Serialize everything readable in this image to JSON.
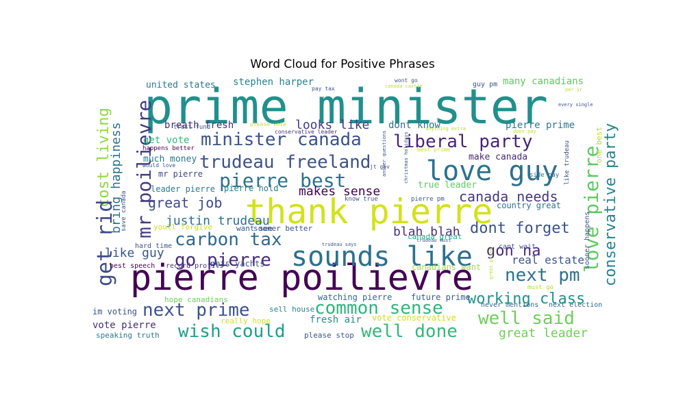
{
  "chart_data": {
    "type": "wordcloud",
    "title": "Word Cloud for Positive Phrases",
    "words": [
      {
        "text": "prime minister",
        "color": "#21908d"
      },
      {
        "text": "pierre poilievre",
        "color": "#440154"
      },
      {
        "text": "thank pierre",
        "color": "#d2e21b"
      },
      {
        "text": "sounds like",
        "color": "#2c718e"
      },
      {
        "text": "love guy",
        "color": "#2c718e"
      },
      {
        "text": "minister canada",
        "color": "#3b528b"
      },
      {
        "text": "liberal party",
        "color": "#482475"
      },
      {
        "text": "trudeau freeland",
        "color": "#3b528b"
      },
      {
        "text": "pierre best",
        "color": "#2c728e"
      },
      {
        "text": "mr poilievre",
        "color": "#443a83"
      },
      {
        "text": "cost living",
        "color": "#8fd744"
      },
      {
        "text": "get rid",
        "color": "#3e4989"
      },
      {
        "text": "love pierre",
        "color": "#5ec962"
      },
      {
        "text": "conservative party",
        "color": "#26828e"
      },
      {
        "text": "carbon tax",
        "color": "#31688e"
      },
      {
        "text": "go pierre",
        "color": "#472c7a"
      },
      {
        "text": "common sense",
        "color": "#2fb47c"
      },
      {
        "text": "next prime",
        "color": "#3b528b"
      },
      {
        "text": "wish could",
        "color": "#1f9e89"
      },
      {
        "text": "well done",
        "color": "#35b779"
      },
      {
        "text": "well said",
        "color": "#6ece58"
      },
      {
        "text": "next pm",
        "color": "#2c718e"
      },
      {
        "text": "working class",
        "color": "#21918c"
      },
      {
        "text": "dont forget",
        "color": "#3b528b"
      },
      {
        "text": "gon na",
        "color": "#482878"
      },
      {
        "text": "canada needs",
        "color": "#453781"
      },
      {
        "text": "great job",
        "color": "#3e4989"
      },
      {
        "text": "makes sense",
        "color": "#440154"
      },
      {
        "text": "looks like",
        "color": "#443a83"
      },
      {
        "text": "justin trudeau",
        "color": "#2d708e"
      },
      {
        "text": "like guy",
        "color": "#39568c"
      },
      {
        "text": "blah blah",
        "color": "#46307e"
      },
      {
        "text": "bring happiness",
        "color": "#2d708e"
      },
      {
        "text": "real estate",
        "color": "#3b528b"
      },
      {
        "text": "great leader",
        "color": "#6ece58"
      },
      {
        "text": "breath fresh",
        "color": "#482878"
      },
      {
        "text": "stephen harper",
        "color": "#26828e"
      },
      {
        "text": "united states",
        "color": "#2a788e"
      },
      {
        "text": "many canadians",
        "color": "#5ec962"
      },
      {
        "text": "dont know",
        "color": "#2c718e"
      },
      {
        "text": "pierre prime",
        "color": "#2a788e"
      },
      {
        "text": "get vote",
        "color": "#35b779"
      },
      {
        "text": "much money",
        "color": "#2a788e"
      },
      {
        "text": "make canada",
        "color": "#482878"
      },
      {
        "text": "true leader",
        "color": "#5ec962"
      },
      {
        "text": "mr pierre",
        "color": "#3e4989"
      },
      {
        "text": "leader pierre",
        "color": "#2a788e"
      },
      {
        "text": "pierre hold",
        "color": "#2a788e"
      },
      {
        "text": "fresh air",
        "color": "#21918c"
      },
      {
        "text": "vote pierre",
        "color": "#472d7b"
      },
      {
        "text": "im voting",
        "color": "#3b528b"
      },
      {
        "text": "nots yachts",
        "color": "#3b528b"
      },
      {
        "text": "watching pierre",
        "color": "#31688e"
      },
      {
        "text": "future prime",
        "color": "#355f8d"
      },
      {
        "text": "country great",
        "color": "#2c718e"
      },
      {
        "text": "canadians want",
        "color": "#a0da39"
      },
      {
        "text": "sooner better",
        "color": "#3b528b"
      },
      {
        "text": "want see",
        "color": "#3b528b"
      },
      {
        "text": "canada great",
        "color": "#22a884"
      },
      {
        "text": "speaking truth",
        "color": "#2a788e"
      },
      {
        "text": "please stop",
        "color": "#3b528b"
      },
      {
        "text": "sell house",
        "color": "#26828e"
      },
      {
        "text": "vote conservative",
        "color": "#cde11d"
      },
      {
        "text": "really hope",
        "color": "#cde11d"
      },
      {
        "text": "hope canadians",
        "color": "#6ece58"
      },
      {
        "text": "youll forgive",
        "color": "#cde11d"
      },
      {
        "text": "hard time",
        "color": "#3b528b"
      },
      {
        "text": "best speech",
        "color": "#440154"
      },
      {
        "text": "record profits",
        "color": "#472d7b"
      },
      {
        "text": "trust fund",
        "color": "#3b528b"
      },
      {
        "text": "please vote",
        "color": "#cde11d"
      },
      {
        "text": "conservative leader",
        "color": "#472d7b"
      },
      {
        "text": "happens better",
        "color": "#440154"
      },
      {
        "text": "would love",
        "color": "#3b528b"
      },
      {
        "text": "best prime",
        "color": "#d2e21b"
      },
      {
        "text": "side pay",
        "color": "#31688e"
      },
      {
        "text": "like trudeau",
        "color": "#3b528b"
      },
      {
        "text": "sooner happens",
        "color": "#3b528b"
      },
      {
        "text": "one best",
        "color": "#b5de2b"
      },
      {
        "text": "cant wait",
        "color": "#3b528b"
      },
      {
        "text": "must go",
        "color": "#b5de2b"
      },
      {
        "text": "never mentions",
        "color": "#31688e"
      },
      {
        "text": "next election",
        "color": "#31688e"
      },
      {
        "text": "guy pm",
        "color": "#3b528b"
      },
      {
        "text": "wont go",
        "color": "#3b528b"
      },
      {
        "text": "pay tax",
        "color": "#3b528b"
      },
      {
        "text": "canada castle",
        "color": "#b5de2b"
      },
      {
        "text": "every single",
        "color": "#3b528b"
      },
      {
        "text": "per yr",
        "color": "#b5de2b"
      },
      {
        "text": "dont pay",
        "color": "#b5de2b"
      },
      {
        "text": "anything extra",
        "color": "#b5de2b"
      },
      {
        "text": "jt gov",
        "color": "#3b528b"
      },
      {
        "text": "know true",
        "color": "#3b528b"
      },
      {
        "text": "pierre pm",
        "color": "#3b528b"
      },
      {
        "text": "answer questions",
        "color": "#3b528b"
      },
      {
        "text": "christmas holidays",
        "color": "#3b528b"
      },
      {
        "text": "trudeau must",
        "color": "#3b528b"
      },
      {
        "text": "trudeau says",
        "color": "#3b528b"
      },
      {
        "text": "great prime",
        "color": "#b5de2b"
      },
      {
        "text": "save canada",
        "color": "#3b528b"
      }
    ]
  }
}
